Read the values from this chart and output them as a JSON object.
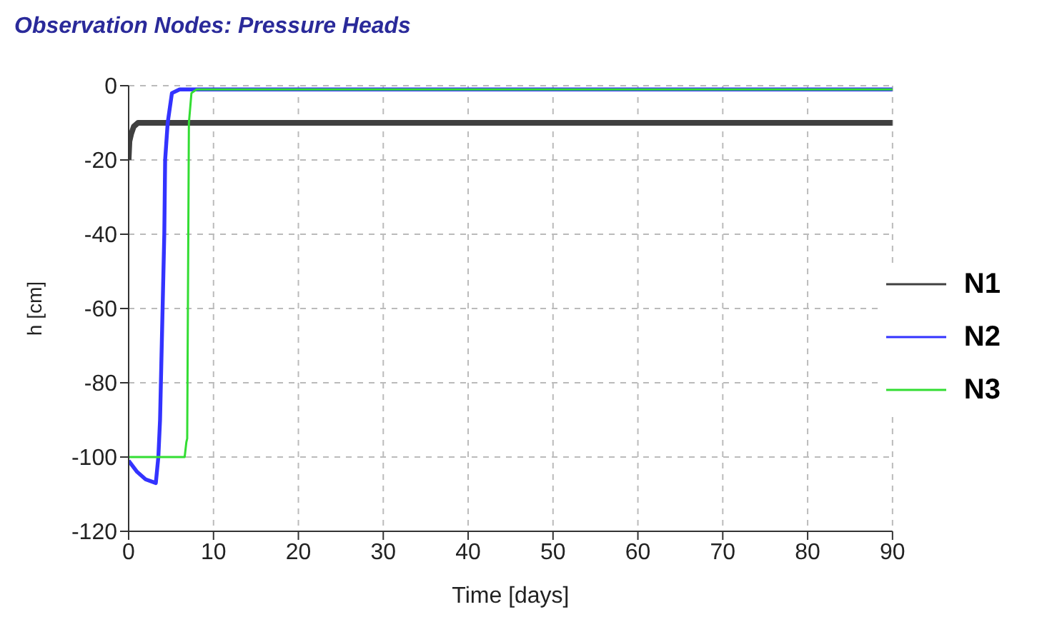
{
  "chart_data": {
    "type": "line",
    "title": "Observation Nodes: Pressure Heads",
    "xlabel": "Time [days]",
    "ylabel": "h [cm]",
    "series": [
      {
        "name": "N1",
        "color": "#404040",
        "x": [
          0,
          0.1,
          0.3,
          0.6,
          1.1,
          90
        ],
        "values": [
          -20,
          -15,
          -13,
          -11,
          -10,
          -10
        ]
      },
      {
        "name": "N2",
        "color": "#3333ff",
        "x": [
          0,
          1,
          2,
          3.2,
          3.5,
          3.7,
          4.0,
          4.2,
          4.3,
          4.6,
          5.1,
          6,
          90
        ],
        "values": [
          -101,
          -104,
          -106,
          -107,
          -100,
          -90,
          -60,
          -40,
          -20,
          -10,
          -2,
          -1,
          -1
        ]
      },
      {
        "name": "N3",
        "color": "#33dd33",
        "x": [
          0,
          6.6,
          6.8,
          6.9,
          7.1,
          7.4,
          8,
          90
        ],
        "values": [
          -100,
          -100,
          -96,
          -95,
          -10,
          -2,
          -1,
          -1
        ]
      }
    ],
    "xlim": [
      0,
      90
    ],
    "xticks": [
      0,
      10,
      20,
      30,
      40,
      50,
      60,
      70,
      80,
      90
    ],
    "ylim": [
      -120,
      0
    ],
    "yticks": [
      -120,
      -100,
      -80,
      -60,
      -40,
      -20,
      0
    ],
    "grid": true,
    "legend": "right",
    "marker": "none",
    "line_style": "solid"
  }
}
